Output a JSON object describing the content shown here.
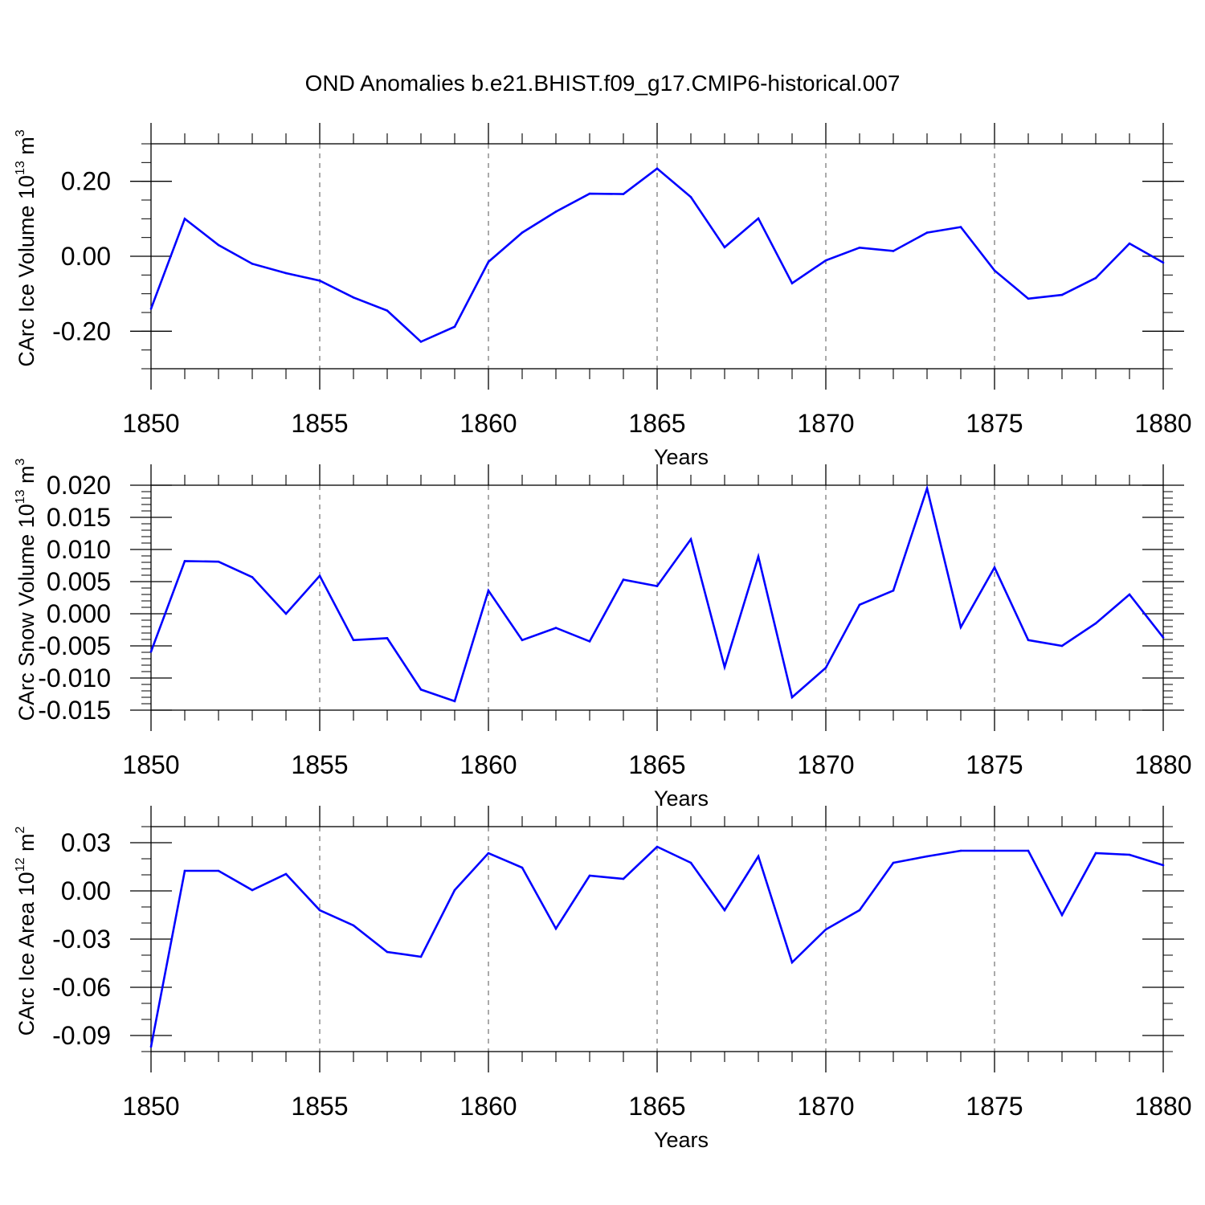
{
  "title": "OND Anomalies b.e21.BHIST.f09_g17.CMIP6-historical.007",
  "colors": {
    "line": "#0000ff",
    "axis": "#000000",
    "grid": "#555555"
  },
  "chart_data": [
    {
      "type": "line",
      "xlabel": "Years",
      "ylabel": {
        "main": "CArc Ice Volume 10",
        "exp": "13",
        "unit": " m",
        "unit_exp": "3"
      },
      "xlim": [
        1850,
        1880
      ],
      "ylim": [
        -0.3,
        0.3
      ],
      "x_ticks": [
        1850,
        1855,
        1860,
        1865,
        1870,
        1875,
        1880
      ],
      "x_tick_labels": [
        "1850",
        "1855",
        "1860",
        "1865",
        "1870",
        "1875",
        "1880"
      ],
      "y_ticks": [
        -0.2,
        0.0,
        0.2
      ],
      "y_tick_labels": [
        "-0.20",
        "0.00",
        "0.20"
      ],
      "y_minor_step": 0.05,
      "grid": "dashed vertical at major x ticks",
      "series": [
        {
          "name": "CArc Ice Volume",
          "x": [
            1850,
            1851,
            1852,
            1853,
            1854,
            1855,
            1856,
            1857,
            1858,
            1859,
            1860,
            1861,
            1862,
            1863,
            1864,
            1865,
            1866,
            1867,
            1868,
            1869,
            1870,
            1871,
            1872,
            1873,
            1874,
            1875,
            1876,
            1877,
            1878,
            1879,
            1880
          ],
          "values": [
            -0.14,
            0.1,
            0.03,
            -0.02,
            -0.045,
            -0.065,
            -0.11,
            -0.145,
            -0.228,
            -0.188,
            -0.015,
            0.063,
            0.119,
            0.167,
            0.166,
            0.234,
            0.158,
            0.024,
            0.101,
            -0.072,
            -0.011,
            0.023,
            0.014,
            0.063,
            0.078,
            -0.038,
            -0.113,
            -0.103,
            -0.058,
            0.034,
            -0.017
          ]
        }
      ]
    },
    {
      "type": "line",
      "xlabel": "Years",
      "ylabel": {
        "main": "CArc Snow Volume 10",
        "exp": "13",
        "unit": " m",
        "unit_exp": "3"
      },
      "xlim": [
        1850,
        1880
      ],
      "ylim": [
        -0.015,
        0.02
      ],
      "x_ticks": [
        1850,
        1855,
        1860,
        1865,
        1870,
        1875,
        1880
      ],
      "x_tick_labels": [
        "1850",
        "1855",
        "1860",
        "1865",
        "1870",
        "1875",
        "1880"
      ],
      "y_ticks": [
        -0.015,
        -0.01,
        -0.005,
        0.0,
        0.005,
        0.01,
        0.015,
        0.02
      ],
      "y_tick_labels": [
        "-0.015",
        "-0.010",
        "-0.005",
        "0.000",
        "0.005",
        "0.010",
        "0.015",
        "0.020"
      ],
      "y_minor_step": 0.001,
      "grid": "dashed vertical at major x ticks",
      "series": [
        {
          "name": "CArc Snow Volume",
          "x": [
            1850,
            1851,
            1852,
            1853,
            1854,
            1855,
            1856,
            1857,
            1858,
            1859,
            1860,
            1861,
            1862,
            1863,
            1864,
            1865,
            1866,
            1867,
            1868,
            1869,
            1870,
            1871,
            1872,
            1873,
            1874,
            1875,
            1876,
            1877,
            1878,
            1879,
            1880
          ],
          "values": [
            -0.0059,
            0.0082,
            0.0081,
            0.0057,
            0.0,
            0.0059,
            -0.0041,
            -0.0038,
            -0.0118,
            -0.0136,
            0.0036,
            -0.0041,
            -0.0022,
            -0.0043,
            0.0053,
            0.0043,
            0.0116,
            -0.0083,
            0.0089,
            -0.013,
            -0.0084,
            0.0014,
            0.0036,
            0.0195,
            -0.0021,
            0.0072,
            -0.0041,
            -0.005,
            -0.0015,
            0.003,
            -0.0037
          ]
        }
      ]
    },
    {
      "type": "line",
      "xlabel": "Years",
      "ylabel": {
        "main": "CArc Ice Area 10",
        "exp": "12",
        "unit": " m",
        "unit_exp": "2"
      },
      "xlim": [
        1850,
        1880
      ],
      "ylim": [
        -0.1,
        0.04
      ],
      "x_ticks": [
        1850,
        1855,
        1860,
        1865,
        1870,
        1875,
        1880
      ],
      "x_tick_labels": [
        "1850",
        "1855",
        "1860",
        "1865",
        "1870",
        "1875",
        "1880"
      ],
      "y_ticks": [
        -0.09,
        -0.06,
        -0.03,
        0.0,
        0.03
      ],
      "y_tick_labels": [
        "-0.09",
        "-0.06",
        "-0.03",
        "0.00",
        "0.03"
      ],
      "y_minor_step": 0.01,
      "grid": "dashed vertical at major x ticks",
      "series": [
        {
          "name": "CArc Ice Area",
          "x": [
            1850,
            1851,
            1852,
            1853,
            1854,
            1855,
            1856,
            1857,
            1858,
            1859,
            1860,
            1861,
            1862,
            1863,
            1864,
            1865,
            1866,
            1867,
            1868,
            1869,
            1870,
            1871,
            1872,
            1873,
            1874,
            1875,
            1876,
            1877,
            1878,
            1879,
            1880
          ],
          "values": [
            -0.097,
            0.0125,
            0.0125,
            0.0005,
            0.0105,
            -0.012,
            -0.0215,
            -0.038,
            -0.041,
            0.0005,
            0.0235,
            0.0145,
            -0.0235,
            0.0095,
            0.0075,
            0.0275,
            0.0175,
            -0.012,
            0.0215,
            -0.0445,
            -0.024,
            -0.012,
            0.0175,
            0.0215,
            0.025,
            0.025,
            0.025,
            -0.015,
            0.0235,
            0.0225,
            0.016
          ]
        }
      ]
    }
  ]
}
